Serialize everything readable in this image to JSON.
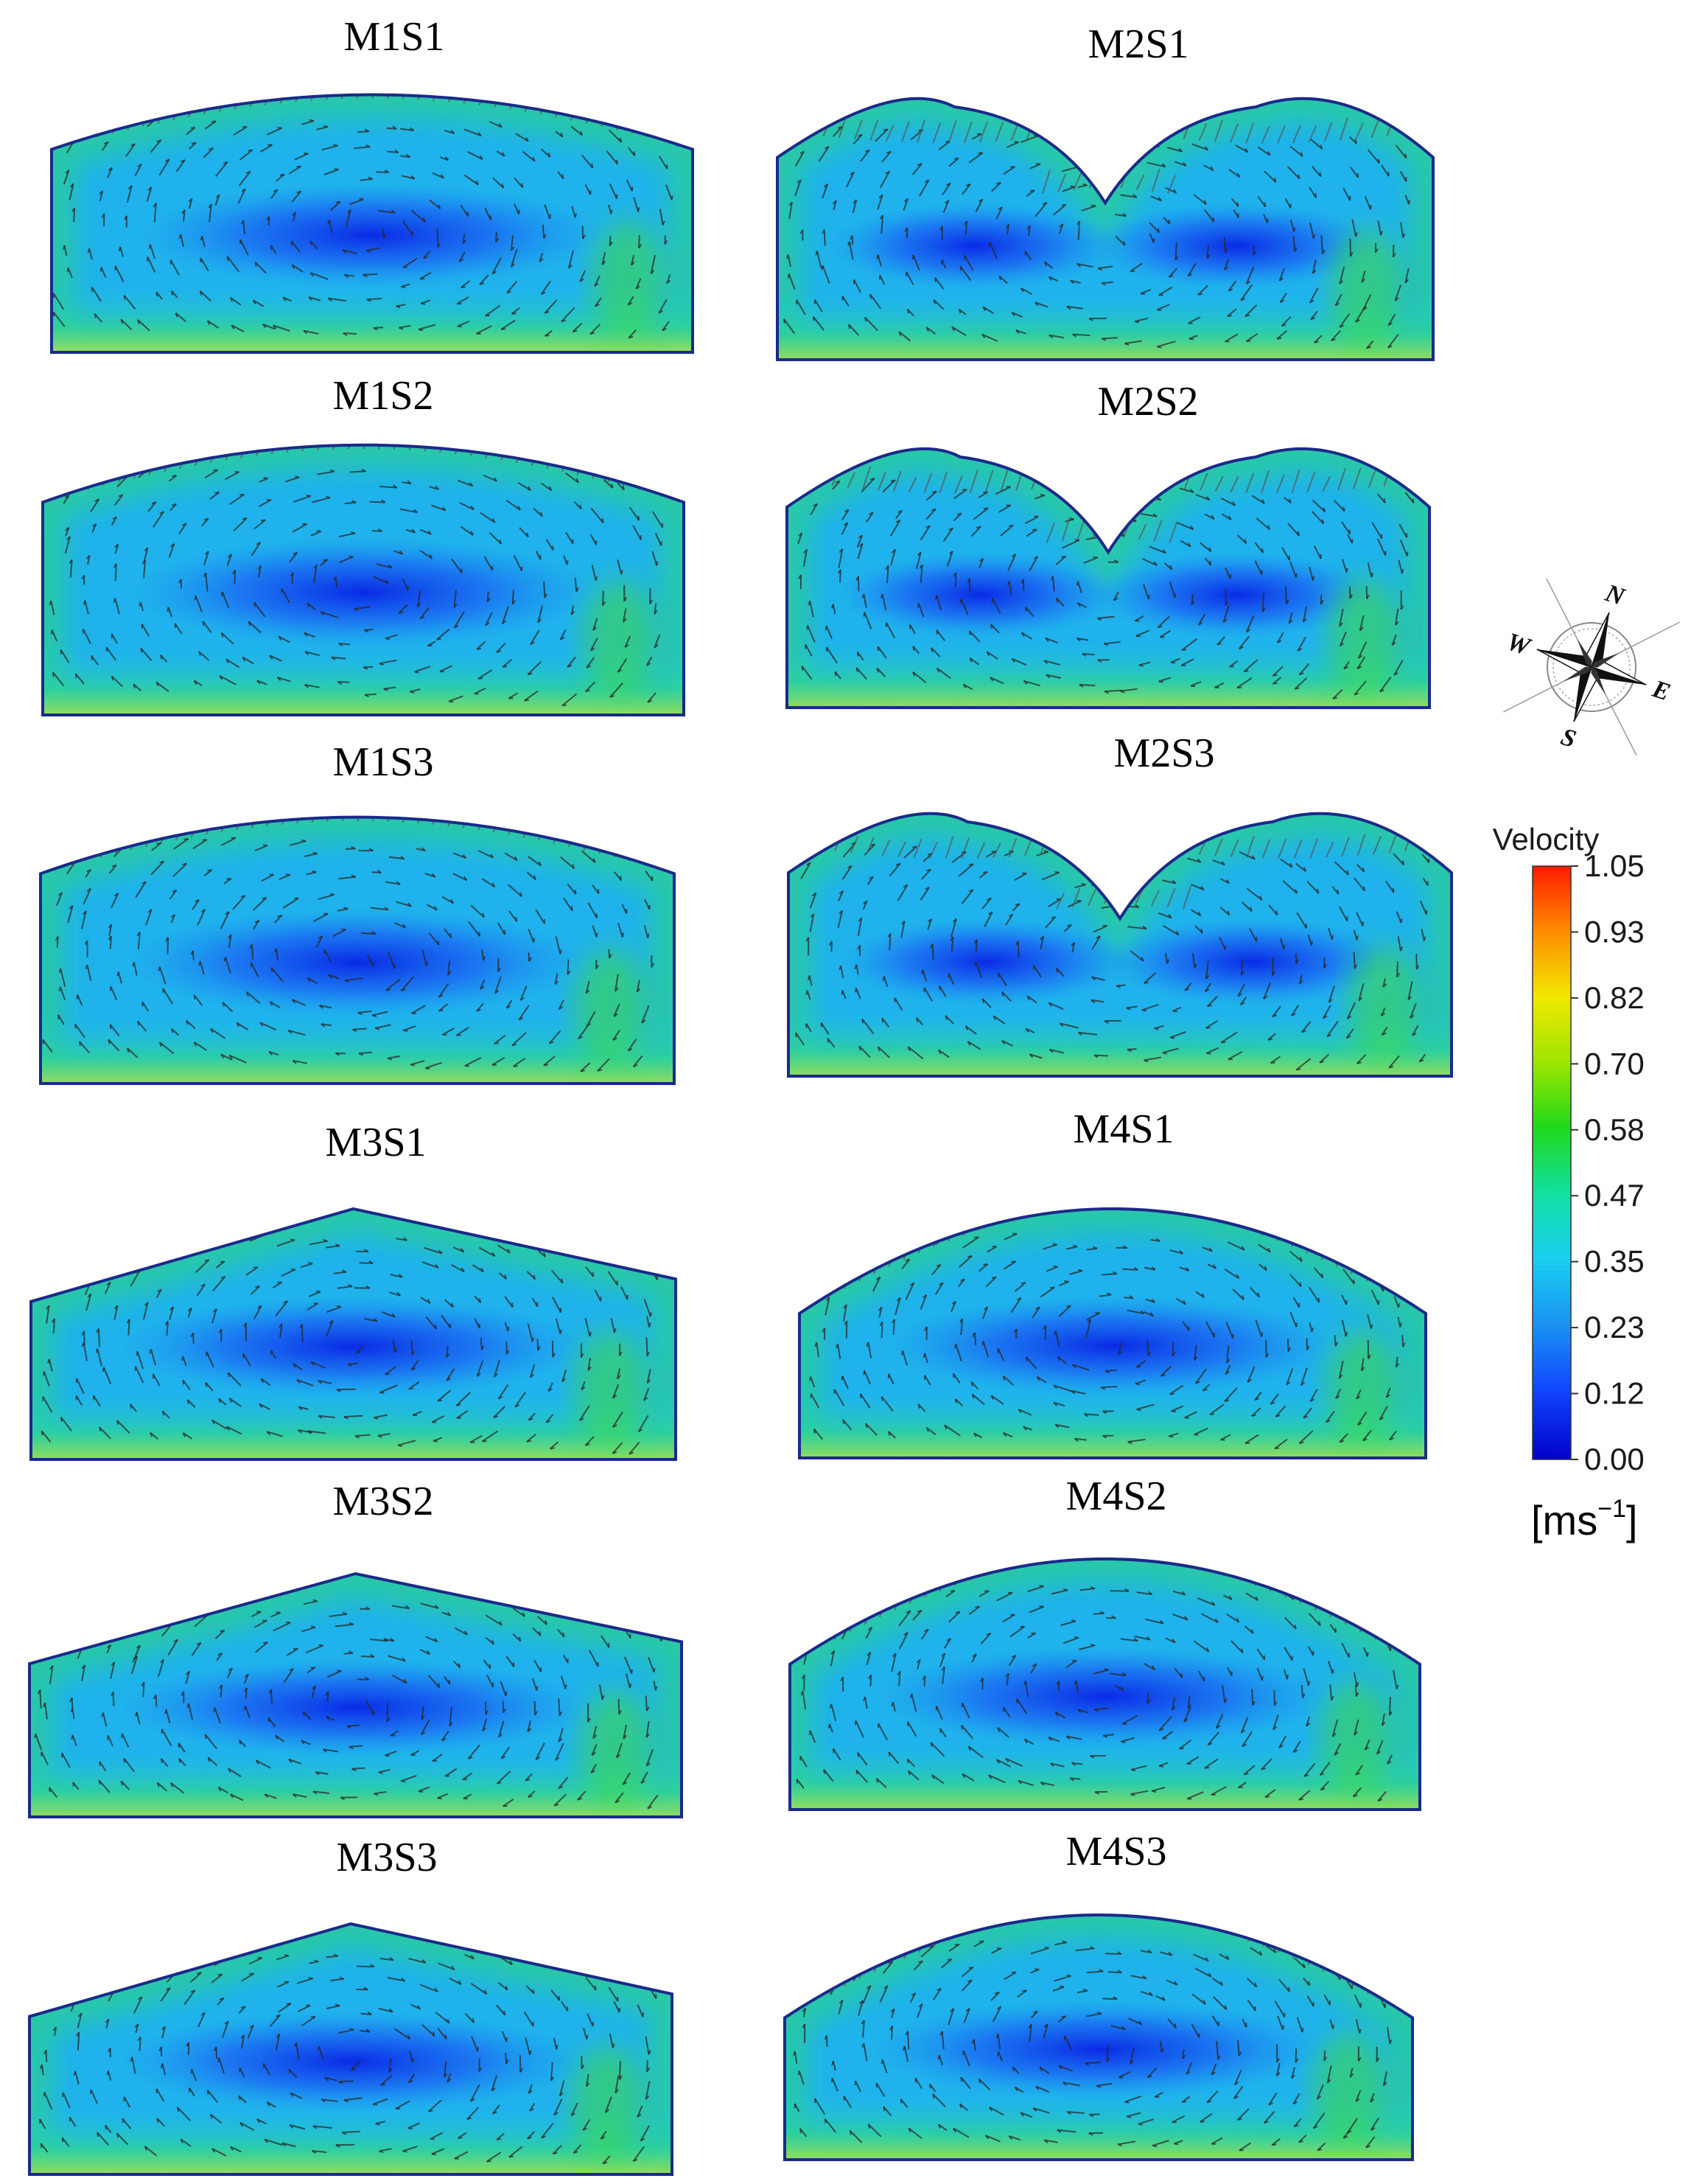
{
  "panels": [
    {
      "id": "M1S1",
      "title": "M1S1",
      "shape": "arch-flat"
    },
    {
      "id": "M2S1",
      "title": "M2S1",
      "shape": "double-arch"
    },
    {
      "id": "M1S2",
      "title": "M1S2",
      "shape": "arch-flat"
    },
    {
      "id": "M2S2",
      "title": "M2S2",
      "shape": "double-arch"
    },
    {
      "id": "M1S3",
      "title": "M1S3",
      "shape": "arch-flat"
    },
    {
      "id": "M2S3",
      "title": "M2S3",
      "shape": "double-arch"
    },
    {
      "id": "M3S1",
      "title": "M3S1",
      "shape": "sloped"
    },
    {
      "id": "M4S1",
      "title": "M4S1",
      "shape": "arch"
    },
    {
      "id": "M3S2",
      "title": "M3S2",
      "shape": "sloped"
    },
    {
      "id": "M4S2",
      "title": "M4S2",
      "shape": "arch"
    },
    {
      "id": "M3S3",
      "title": "M3S3",
      "shape": "sloped"
    },
    {
      "id": "M4S3",
      "title": "M4S3",
      "shape": "arch"
    }
  ],
  "colorbar": {
    "title": "Velocity",
    "ticks": [
      "1.05",
      "0.93",
      "0.82",
      "0.70",
      "0.58",
      "0.47",
      "0.35",
      "0.23",
      "0.12",
      "0.00"
    ],
    "unit_base": "[ms",
    "unit_exp": "−1",
    "unit_close": "]",
    "colors": [
      "#ff2a00",
      "#ffa200",
      "#f4ee00",
      "#7be600",
      "#18d61c",
      "#10e0b0",
      "#18c8f0",
      "#1a8cf0",
      "#1040ff",
      "#0000d8"
    ]
  },
  "compass": {
    "n": "N",
    "s": "S",
    "e": "E",
    "w": "W"
  }
}
